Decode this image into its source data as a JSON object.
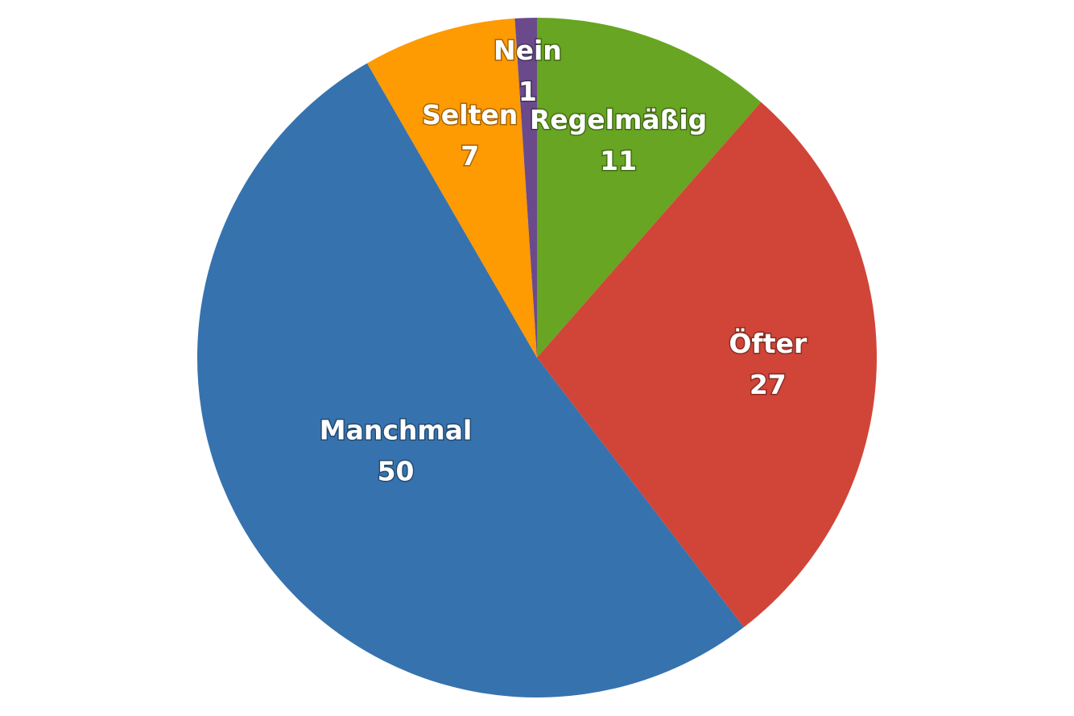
{
  "chart_data": {
    "type": "pie",
    "categories": [
      "Regelmäßig",
      "Öfter",
      "Manchmal",
      "Selten",
      "Nein"
    ],
    "values": [
      11,
      27,
      50,
      7,
      1
    ],
    "colors": [
      "#67a522",
      "#d04538",
      "#3672ae",
      "#fe9a02",
      "#6b4a8c"
    ]
  }
}
